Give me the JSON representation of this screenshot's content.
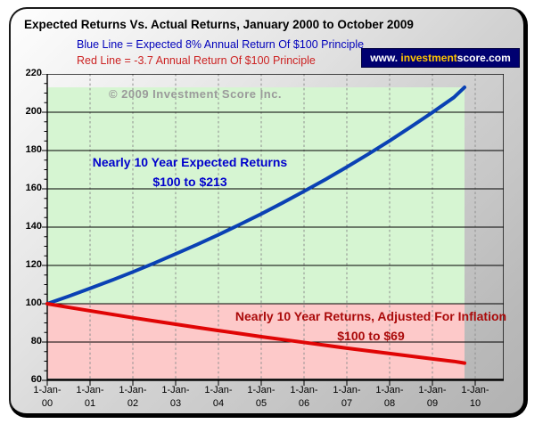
{
  "header": {
    "title": "Expected Returns Vs. Actual Returns, January 2000 to October 2009",
    "legend_blue": "Blue Line = Expected 8% Annual Return Of $100 Principle",
    "legend_red": "Red Line = -3.7 Annual Return Of $100 Principle",
    "badge": {
      "prefix": "www. ",
      "highlight": "investment",
      "suffix": "score.com"
    }
  },
  "annotations": {
    "copyright": "© 2009 Investment Score Inc.",
    "expected_line1": "Nearly 10 Year Expected Returns",
    "expected_line2": "$100 to $213",
    "actual_line1": "Nearly 10 Year Returns, Adjusted For Inflation",
    "actual_line2": "$100 to $69"
  },
  "colors": {
    "expected_line": "#0a41b4",
    "actual_line": "#e00505",
    "expected_region": "#d6f5d2",
    "actual_region": "#fdc9c9",
    "gridline_solid": "#000000",
    "gridline_dashed": "#8f8f8f",
    "badge_background": "#000070",
    "badge_highlight": "#fdc400",
    "expected_text": "#0000cc",
    "actual_text": "#aa0a0a"
  },
  "chart_data": {
    "type": "line",
    "title": "Expected Returns Vs. Actual Returns, January 2000 to October 2009",
    "xlabel": "",
    "ylabel": "",
    "ylim": [
      60,
      220
    ],
    "xlim_years": [
      0,
      10.625
    ],
    "grid": "horizontal solid, vertical dashed",
    "legend_position": "top",
    "y_ticks": [
      220,
      200,
      180,
      160,
      140,
      120,
      100,
      80,
      60
    ],
    "y_minor_step": 5,
    "x_tick_prefix": "1-Jan-",
    "x_tick_years": [
      "00",
      "01",
      "02",
      "03",
      "04",
      "05",
      "06",
      "07",
      "08",
      "09",
      "10"
    ],
    "data_end_years": 9.75,
    "regions": [
      {
        "name": "expected-gain-region",
        "color": "#d6f5d2",
        "x": [
          0,
          9.75
        ],
        "y": [
          100,
          213
        ]
      },
      {
        "name": "inflation-loss-region",
        "color": "#fdc9c9",
        "x": [
          0,
          9.75
        ],
        "y": [
          61,
          100
        ]
      }
    ],
    "series": [
      {
        "name": "Expected 8% Annual Return Of $100 Principle",
        "color": "#0a41b4",
        "x": [
          0,
          0.5,
          1,
          1.5,
          2,
          2.5,
          3,
          3.5,
          4,
          4.5,
          5,
          5.5,
          6,
          6.5,
          7,
          7.5,
          8,
          8.5,
          9,
          9.5,
          9.75
        ],
        "values": [
          100,
          103.9,
          108,
          112.2,
          116.6,
          121.2,
          126,
          130.9,
          136,
          141.4,
          146.9,
          152.7,
          158.7,
          164.9,
          171.4,
          178.1,
          185.1,
          192.4,
          199.9,
          207.7,
          213
        ]
      },
      {
        "name": "-3.7% Annual Return Of $100 Principle (Inflation Adjusted)",
        "color": "#e00505",
        "x": [
          0,
          0.5,
          1,
          1.5,
          2,
          2.5,
          3,
          3.5,
          4,
          4.5,
          5,
          5.5,
          6,
          6.5,
          7,
          7.5,
          8,
          8.5,
          9,
          9.5,
          9.75
        ],
        "values": [
          100,
          98.1,
          96.3,
          94.5,
          92.7,
          91,
          89.3,
          87.6,
          86,
          84.4,
          82.8,
          81.3,
          79.8,
          78.3,
          76.8,
          75.4,
          74,
          72.6,
          71.2,
          69.9,
          69
        ]
      }
    ]
  }
}
